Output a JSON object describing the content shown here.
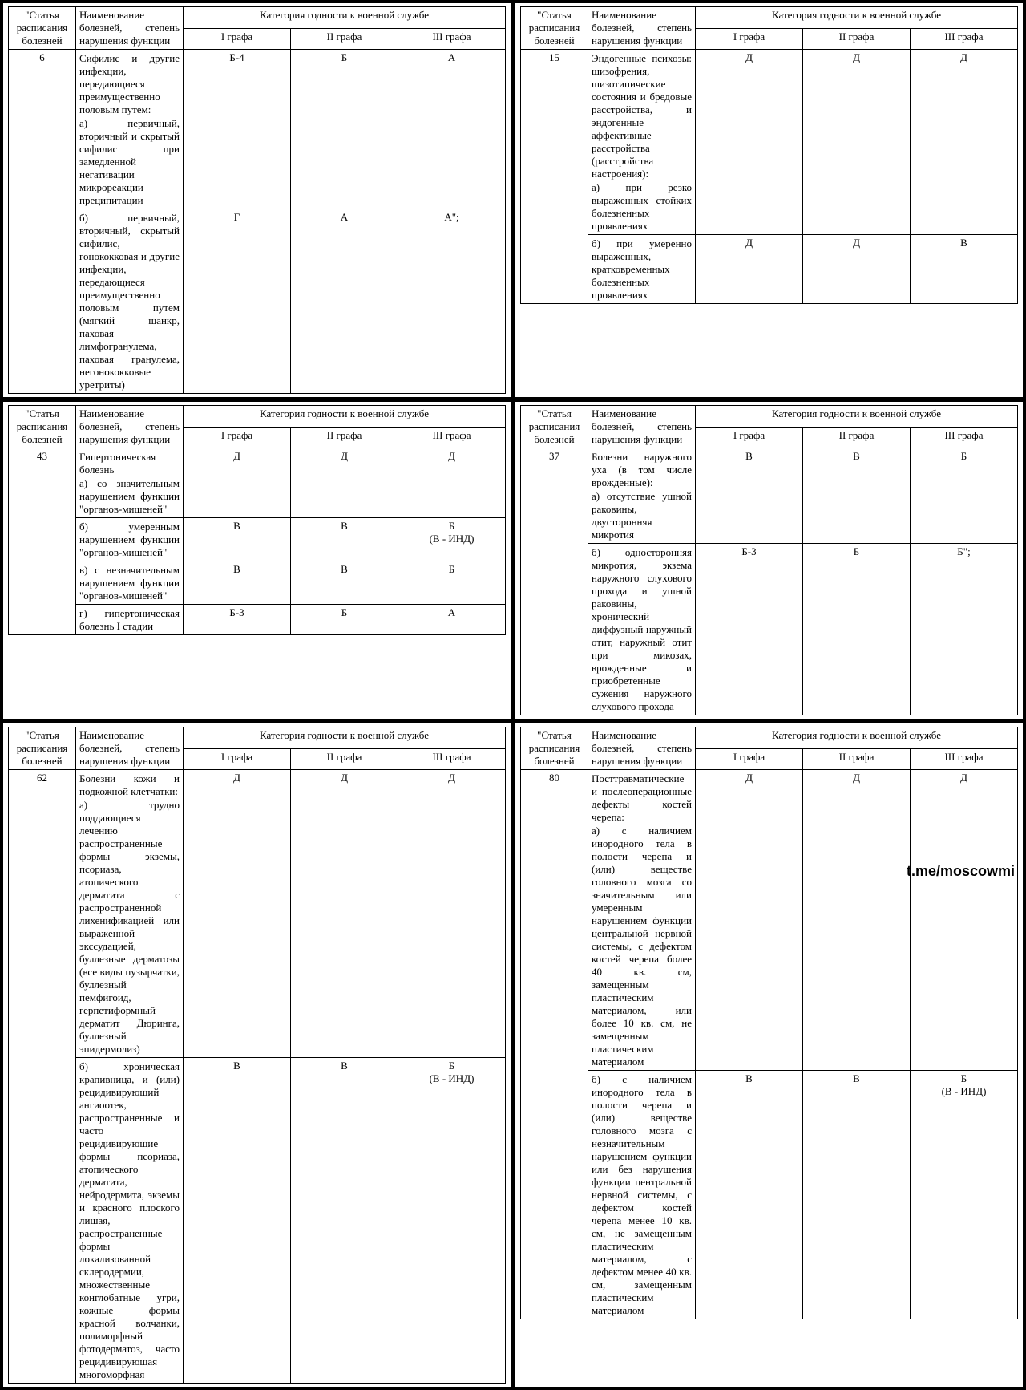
{
  "headers": {
    "article": "\"Статья расписания болезней",
    "name": "Наименование болезней, степень нарушения функции",
    "category": "Категория годности к военной службе",
    "g1": "I графа",
    "g2": "II графа",
    "g3": "III графа"
  },
  "watermark": "t.me/moscowmi",
  "panels": [
    {
      "article": "6",
      "intro": "Сифилис и другие инфекции, передающиеся преимущественно половым путем:",
      "rows": [
        {
          "text": "а) первичный, вторичный и скрытый сифилис при замедленной негативации микрореакции преципитации",
          "g1": "Б-4",
          "g2": "Б",
          "g3": "А"
        },
        {
          "text": "б) первичный, вторичный, скрытый сифилис, гонококковая и другие инфекции, передающиеся преимущественно половым путем (мягкий шанкр, паховая лимфогранулема, паховая гранулема, негонококковые уретриты)",
          "g1": "Г",
          "g2": "А",
          "g3": "А\";"
        }
      ]
    },
    {
      "article": "15",
      "intro": "Эндогенные психозы: шизофрения, шизотипические состояния и бредовые расстройства, и эндогенные аффективные расстройства (расстройства настроения):",
      "rows": [
        {
          "text": "а) при резко выраженных стойких болезненных проявлениях",
          "g1": "Д",
          "g2": "Д",
          "g3": "Д"
        },
        {
          "text": "б) при умеренно выраженных, кратковременных болезненных проявлениях",
          "g1": "Д",
          "g2": "Д",
          "g3": "В"
        }
      ]
    },
    {
      "article": "43",
      "intro": "Гипертоническая болезнь",
      "rows": [
        {
          "text": "а) со значительным нарушением функции \"органов-мишеней\"",
          "g1": "Д",
          "g2": "Д",
          "g3": "Д"
        },
        {
          "text": "б) умеренным нарушением функции \"органов-мишеней\"",
          "g1": "В",
          "g2": "В",
          "g3": "Б\n(В - ИНД)"
        },
        {
          "text": "в) с незначительным нарушением функции \"органов-мишеней\"",
          "g1": "В",
          "g2": "В",
          "g3": "Б"
        },
        {
          "text": "г) гипертоническая болезнь I стадии",
          "g1": "Б-3",
          "g2": "Б",
          "g3": "А"
        }
      ]
    },
    {
      "article": "37",
      "intro": "Болезни наружного уха (в том числе врожденные):",
      "rows": [
        {
          "text": "а) отсутствие ушной раковины, двусторонняя микротия",
          "g1": "В",
          "g2": "В",
          "g3": "Б"
        },
        {
          "text": "б) односторонняя микротия, экзема наружного слухового прохода и ушной раковины, хронический диффузный наружный отит, наружный отит при микозах, врожденные и приобретенные сужения наружного слухового прохода",
          "g1": "Б-3",
          "g2": "Б",
          "g3": "Б\";"
        }
      ]
    },
    {
      "article": "62",
      "intro": "Болезни кожи и подкожной клетчатки:",
      "rows": [
        {
          "text": "а) трудно поддающиеся лечению распространенные формы экземы, псориаза, атопического дерматита с распространенной лихенификацией или выраженной экссудацией, буллезные дерматозы (все виды пузырчатки, буллезный пемфигоид, герпетиформный дерматит Дюринга, буллезный эпидермолиз)",
          "g1": "Д",
          "g2": "Д",
          "g3": "Д"
        },
        {
          "text": "б) хроническая крапивница, и (или) рецидивирующий ангиоотек, распространенные и часто рецидивирующие формы псориаза, атопического дерматита, нейродермита, экземы и красного плоского лишая, распространенные формы локализованной склеродермии, множественные конглобатные угри, кожные формы красной волчанки, полиморфный фотодерматоз, часто рецидивирующая многоморфная",
          "g1": "В",
          "g2": "В",
          "g3": "Б\n(В - ИНД)"
        }
      ]
    },
    {
      "article": "80",
      "intro": "Посттравматические и послеоперационные дефекты костей черепа:",
      "rows": [
        {
          "text": "а) с наличием инородного тела в полости черепа и (или) веществе головного мозга со значительным или умеренным нарушением функции центральной нервной системы, с дефектом костей черепа более 40 кв. см, замещенным пластическим материалом, или более 10 кв. см, не замещенным пластическим материалом",
          "g1": "Д",
          "g2": "Д",
          "g3": "Д"
        },
        {
          "text": "б) с наличием инородного тела в полости черепа и (или) веществе головного мозга с незначительным нарушением функции или без нарушения функции центральной нервной системы, с дефектом костей черепа менее 10 кв. см, не замещенным пластическим материалом, с дефектом менее 40 кв. см, замещенным пластическим материалом",
          "g1": "В",
          "g2": "В",
          "g3": "Б\n(В - ИНД)"
        }
      ]
    }
  ]
}
